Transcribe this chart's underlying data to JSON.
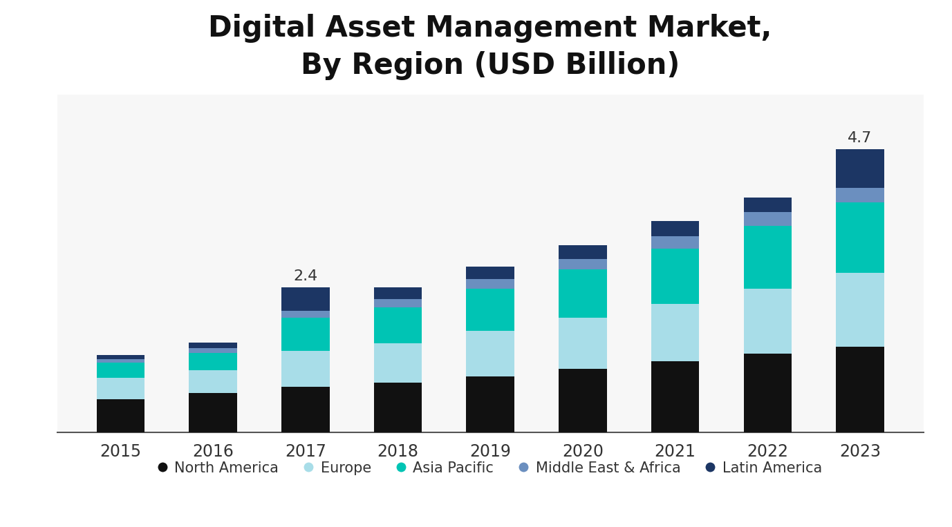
{
  "title": "Digital Asset Management Market,\nBy Region (USD Billion)",
  "years": [
    2015,
    2016,
    2017,
    2018,
    2019,
    2020,
    2021,
    2022,
    2023
  ],
  "regions": [
    "North America",
    "Europe",
    "Asia Pacific",
    "Middle East & Africa",
    "Latin America"
  ],
  "colors": [
    "#111111",
    "#A8DDE8",
    "#00C4B4",
    "#6B8FBF",
    "#1C3664"
  ],
  "data": {
    "North America": [
      0.55,
      0.65,
      0.75,
      0.82,
      0.93,
      1.05,
      1.18,
      1.3,
      1.42
    ],
    "Europe": [
      0.35,
      0.38,
      0.6,
      0.65,
      0.75,
      0.85,
      0.95,
      1.08,
      1.22
    ],
    "Asia Pacific": [
      0.25,
      0.29,
      0.55,
      0.6,
      0.7,
      0.8,
      0.92,
      1.05,
      1.18
    ],
    "Middle East & Africa": [
      0.06,
      0.08,
      0.12,
      0.14,
      0.16,
      0.18,
      0.2,
      0.22,
      0.24
    ],
    "Latin America": [
      0.07,
      0.09,
      0.38,
      0.19,
      0.21,
      0.22,
      0.25,
      0.25,
      0.64
    ]
  },
  "annotations": {
    "2017": "2.4",
    "2023": "4.7"
  },
  "annotation_fontsize": 16,
  "title_fontsize": 30,
  "tick_fontsize": 17,
  "legend_fontsize": 15,
  "background_color": "#FFFFFF",
  "bar_width": 0.52,
  "ylim": [
    0,
    5.6
  ],
  "fig_bg": "#F7F7F7"
}
